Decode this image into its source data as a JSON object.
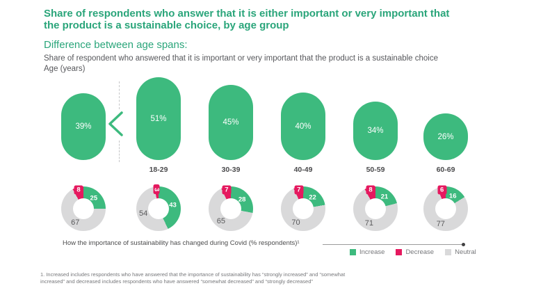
{
  "title": "Share of respondents who answer that it is either important or very important that the product is a sustainable choice, by age group",
  "subtitle": "Difference between age spans:",
  "description": "Share of respondent who answered that it is important or very important that the product is a sustainable choice",
  "axis_note": "Age (years)",
  "comparison_symbol": "<",
  "columns": [
    {
      "pill_label": "39%",
      "age_label": ""
    },
    {
      "pill_label": "51%",
      "age_label": "18-29"
    },
    {
      "pill_label": "45%",
      "age_label": "30-39"
    },
    {
      "pill_label": "40%",
      "age_label": "40-49"
    },
    {
      "pill_label": "34%",
      "age_label": "50-59"
    },
    {
      "pill_label": "26%",
      "age_label": "60-69"
    }
  ],
  "legend": {
    "heading": "How the importance of sustainability has changed during Covid (% respondents)¹",
    "items": [
      {
        "label": "Increase",
        "color": "#3dba7e"
      },
      {
        "label": "Decrease",
        "color": "#e5195f"
      },
      {
        "label": "Neutral",
        "color": "#d9d9da"
      }
    ]
  },
  "footnote": "1. Increased includes respondents who have answered that the importance of sustainability has “strongly increased” and “somewhat increased” and decreased includes respondents who have answered “somewhat decreased” and “strongly decreased”",
  "colors": {
    "heading_green": "#2aa57a",
    "bar_green": "#3dba7e",
    "increase_green": "#3dba7e",
    "decrease_pink": "#e5195f",
    "neutral_gray": "#d9d9da",
    "text_dark": "#4c4c4d",
    "text_gray": "#77787b"
  },
  "chart_data": [
    {
      "type": "bar",
      "title": "Share of respondent who answered that it is important or very important that the product is a sustainable choice",
      "xlabel": "Age (years)",
      "ylabel": "",
      "unit": "%",
      "categories": [
        "",
        "18-29",
        "30-39",
        "40-49",
        "50-59",
        "60-69"
      ],
      "values": [
        39,
        51,
        45,
        40,
        34,
        26
      ],
      "annotations": [
        "39% < 51%"
      ],
      "grid": false,
      "ylim": [
        0,
        60
      ]
    },
    {
      "type": "pie",
      "title": "How the importance of sustainability has changed during Covid (% respondents)¹",
      "series_labels": [
        "Increase",
        "Decrease",
        "Neutral"
      ],
      "legend_position": "bottom-right",
      "groups": [
        {
          "category": "",
          "increase": 25,
          "decrease": 8,
          "neutral": 67
        },
        {
          "category": "18-29",
          "increase": 43,
          "decrease": 3,
          "neutral": 54
        },
        {
          "category": "30-39",
          "increase": 28,
          "decrease": 7,
          "neutral": 65
        },
        {
          "category": "40-49",
          "increase": 22,
          "decrease": 7,
          "neutral": 70
        },
        {
          "category": "50-59",
          "increase": 21,
          "decrease": 8,
          "neutral": 71
        },
        {
          "category": "60-69",
          "increase": 16,
          "decrease": 6,
          "neutral": 77
        }
      ]
    }
  ]
}
